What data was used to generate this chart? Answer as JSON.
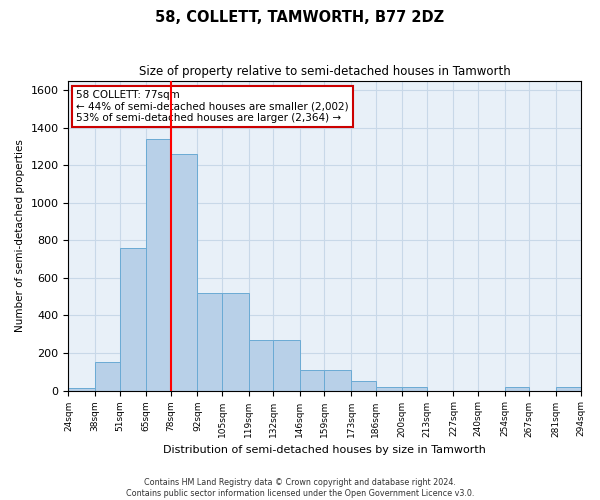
{
  "title": "58, COLLETT, TAMWORTH, B77 2DZ",
  "subtitle": "Size of property relative to semi-detached houses in Tamworth",
  "xlabel": "Distribution of semi-detached houses by size in Tamworth",
  "ylabel": "Number of semi-detached properties",
  "footer_line1": "Contains HM Land Registry data © Crown copyright and database right 2024.",
  "footer_line2": "Contains public sector information licensed under the Open Government Licence v3.0.",
  "annotation_title": "58 COLLETT: 77sqm",
  "annotation_line1": "← 44% of semi-detached houses are smaller (2,002)",
  "annotation_line2": "53% of semi-detached houses are larger (2,364) →",
  "bar_lefts": [
    24,
    38,
    51,
    65,
    78,
    92,
    105,
    119,
    132,
    146,
    159,
    173,
    186,
    200,
    213,
    227,
    240,
    254,
    267,
    281
  ],
  "bar_rights": [
    38,
    51,
    65,
    78,
    92,
    105,
    119,
    132,
    146,
    159,
    173,
    186,
    200,
    213,
    227,
    240,
    254,
    267,
    281,
    294
  ],
  "bar_values": [
    15,
    150,
    760,
    1340,
    1260,
    520,
    520,
    270,
    270,
    110,
    110,
    50,
    20,
    20,
    0,
    0,
    0,
    20,
    0,
    20
  ],
  "bar_color": "#b8d0e8",
  "bar_edge_color": "#6aaad4",
  "grid_color": "#c8d8e8",
  "background_color": "#e8f0f8",
  "red_line_x": 78,
  "annotation_box_color": "#ffffff",
  "annotation_box_edge": "#cc0000",
  "ylim": [
    0,
    1650
  ],
  "yticks": [
    0,
    200,
    400,
    600,
    800,
    1000,
    1200,
    1400,
    1600
  ],
  "tick_labels": [
    "24sqm",
    "38sqm",
    "51sqm",
    "65sqm",
    "78sqm",
    "92sqm",
    "105sqm",
    "119sqm",
    "132sqm",
    "146sqm",
    "159sqm",
    "173sqm",
    "186sqm",
    "200sqm",
    "213sqm",
    "227sqm",
    "240sqm",
    "254sqm",
    "267sqm",
    "281sqm",
    "294sqm"
  ]
}
